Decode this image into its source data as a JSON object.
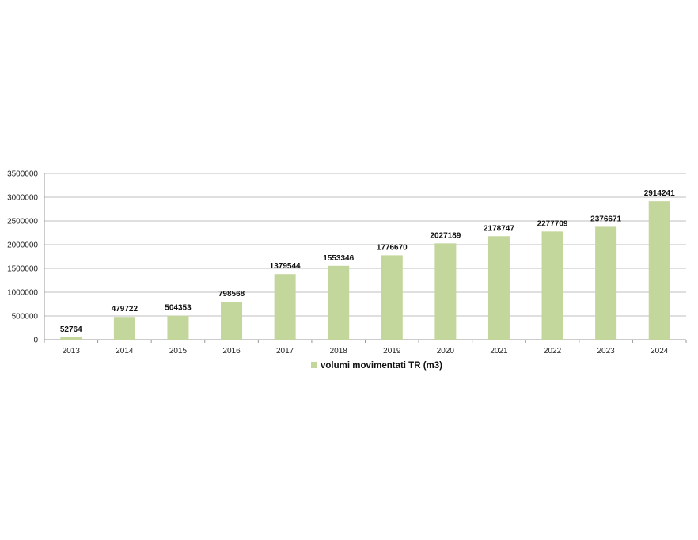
{
  "chart_data": {
    "type": "bar",
    "title": "",
    "xlabel": "",
    "ylabel": "",
    "categories": [
      "2013",
      "2014",
      "2015",
      "2016",
      "2017",
      "2018",
      "2019",
      "2020",
      "2021",
      "2022",
      "2023",
      "2024"
    ],
    "series": [
      {
        "name": "volumi movimentati TR (m3)",
        "values": [
          52764,
          479722,
          504353,
          798568,
          1379544,
          1553346,
          1776670,
          2027189,
          2178747,
          2277709,
          2376671,
          2914241
        ],
        "color": "#c3d69b"
      }
    ],
    "data_labels": [
      "52764",
      "479722",
      "504353",
      "798568",
      "1379544",
      "1553346",
      "1776670",
      "2027189",
      "2178747",
      "2277709",
      "2376671",
      "2914241"
    ],
    "ylim": [
      0,
      3500000
    ],
    "yticks": [
      "0",
      "500000",
      "1000000",
      "1500000",
      "2000000",
      "2500000",
      "3000000",
      "3500000"
    ],
    "grid": true,
    "legend_position": "bottom",
    "gridline_color": "#bfbfbf"
  }
}
